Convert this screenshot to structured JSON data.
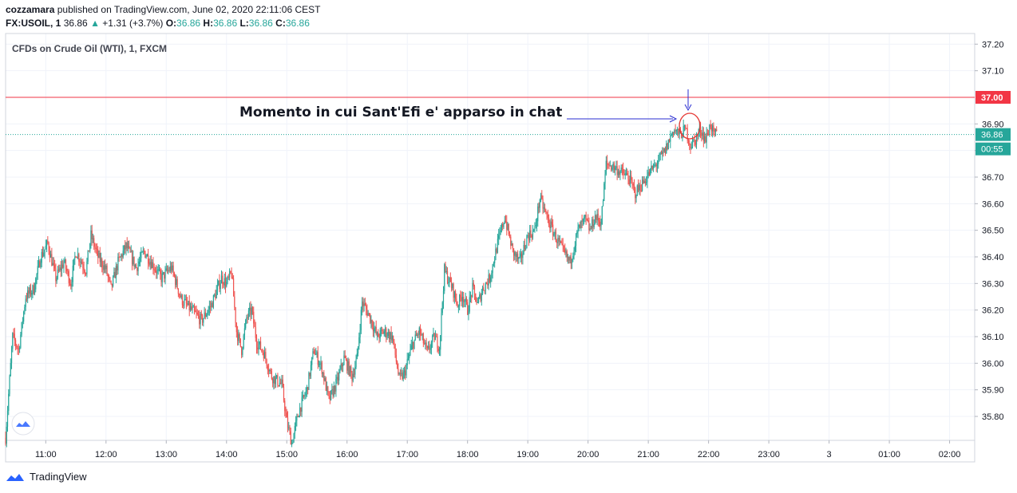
{
  "header": {
    "author": "cozzamara",
    "published_text": "published on TradingView.com, June 02, 2020 22:11:06 CEST",
    "symbol": "FX:USOIL, 1",
    "last_price": "36.86",
    "change_arrow": "▲",
    "change": "+1.31 (+3.7%)",
    "o_label": "O:",
    "o_value": "36.86",
    "h_label": "H:",
    "h_value": "36.86",
    "l_label": "L:",
    "l_value": "36.86",
    "c_label": "C:",
    "c_value": "36.86"
  },
  "footer": {
    "brand": "TradingView"
  },
  "chart_data": {
    "type": "candlestick",
    "title": "CFDs on Crude Oil (WTI), 1, FXCM",
    "annotation": "Momento in cui Sant'Efi e' apparso in chat",
    "y_ticks": [
      "37.20",
      "37.10",
      "36.90",
      "36.80",
      "36.70",
      "36.60",
      "36.50",
      "36.40",
      "36.30",
      "36.20",
      "36.10",
      "36.00",
      "35.90",
      "35.80"
    ],
    "x_ticks": [
      "11:00",
      "12:00",
      "13:00",
      "14:00",
      "15:00",
      "16:00",
      "17:00",
      "18:00",
      "19:00",
      "20:00",
      "21:00",
      "22:00",
      "23:00",
      "3",
      "01:00",
      "02:00"
    ],
    "ylim": [
      35.71,
      37.24
    ],
    "horizontal_line": {
      "value": 37.0,
      "label": "37.00",
      "color": "#f23645"
    },
    "last_price_line": {
      "value": 36.86,
      "label": "36.86",
      "countdown": "00:55",
      "color": "#26a69a"
    },
    "colors": {
      "up": "#26a69a",
      "down": "#ef5350",
      "annotation": "#2a2ed1",
      "circle": "#e53935"
    },
    "path_anchors_time_close": [
      [
        "10:20",
        35.72
      ],
      [
        "10:27",
        36.1
      ],
      [
        "10:33",
        36.05
      ],
      [
        "10:40",
        36.25
      ],
      [
        "10:48",
        36.28
      ],
      [
        "10:55",
        36.4
      ],
      [
        "11:02",
        36.45
      ],
      [
        "11:10",
        36.32
      ],
      [
        "11:18",
        36.38
      ],
      [
        "11:25",
        36.3
      ],
      [
        "11:30",
        36.42
      ],
      [
        "11:40",
        36.35
      ],
      [
        "11:45",
        36.48
      ],
      [
        "11:52",
        36.4
      ],
      [
        "12:00",
        36.35
      ],
      [
        "12:05",
        36.28
      ],
      [
        "12:12",
        36.38
      ],
      [
        "12:20",
        36.44
      ],
      [
        "12:30",
        36.36
      ],
      [
        "12:38",
        36.42
      ],
      [
        "12:45",
        36.38
      ],
      [
        "12:55",
        36.32
      ],
      [
        "13:05",
        36.36
      ],
      [
        "13:15",
        36.24
      ],
      [
        "13:25",
        36.2
      ],
      [
        "13:35",
        36.16
      ],
      [
        "13:45",
        36.22
      ],
      [
        "13:55",
        36.32
      ],
      [
        "14:00",
        36.3
      ],
      [
        "14:05",
        36.34
      ],
      [
        "14:10",
        36.12
      ],
      [
        "14:15",
        36.05
      ],
      [
        "14:20",
        36.17
      ],
      [
        "14:25",
        36.2
      ],
      [
        "14:30",
        36.08
      ],
      [
        "14:37",
        36.04
      ],
      [
        "14:45",
        35.95
      ],
      [
        "14:55",
        35.92
      ],
      [
        "15:00",
        35.78
      ],
      [
        "15:05",
        35.7
      ],
      [
        "15:12",
        35.82
      ],
      [
        "15:20",
        35.9
      ],
      [
        "15:27",
        36.05
      ],
      [
        "15:35",
        35.98
      ],
      [
        "15:42",
        35.86
      ],
      [
        "15:50",
        35.93
      ],
      [
        "15:57",
        36.02
      ],
      [
        "16:05",
        35.95
      ],
      [
        "16:10",
        36.02
      ],
      [
        "16:15",
        36.23
      ],
      [
        "16:22",
        36.18
      ],
      [
        "16:30",
        36.1
      ],
      [
        "16:37",
        36.12
      ],
      [
        "16:45",
        36.1
      ],
      [
        "16:52",
        35.94
      ],
      [
        "16:57",
        35.96
      ],
      [
        "17:05",
        36.07
      ],
      [
        "17:12",
        36.12
      ],
      [
        "17:20",
        36.04
      ],
      [
        "17:27",
        36.1
      ],
      [
        "17:32",
        36.06
      ],
      [
        "17:37",
        36.35
      ],
      [
        "17:45",
        36.28
      ],
      [
        "17:50",
        36.22
      ],
      [
        "17:55",
        36.26
      ],
      [
        "18:00",
        36.2
      ],
      [
        "18:05",
        36.28
      ],
      [
        "18:10",
        36.22
      ],
      [
        "18:15",
        36.28
      ],
      [
        "18:22",
        36.32
      ],
      [
        "18:30",
        36.45
      ],
      [
        "18:37",
        36.55
      ],
      [
        "18:45",
        36.42
      ],
      [
        "18:52",
        36.38
      ],
      [
        "19:00",
        36.48
      ],
      [
        "19:07",
        36.5
      ],
      [
        "19:12",
        36.62
      ],
      [
        "19:20",
        36.54
      ],
      [
        "19:27",
        36.48
      ],
      [
        "19:35",
        36.42
      ],
      [
        "19:42",
        36.38
      ],
      [
        "19:50",
        36.5
      ],
      [
        "19:57",
        36.54
      ],
      [
        "20:02",
        36.5
      ],
      [
        "20:07",
        36.55
      ],
      [
        "20:13",
        36.53
      ],
      [
        "20:18",
        36.75
      ],
      [
        "20:25",
        36.74
      ],
      [
        "20:32",
        36.72
      ],
      [
        "20:40",
        36.7
      ],
      [
        "20:47",
        36.64
      ],
      [
        "20:55",
        36.68
      ],
      [
        "21:02",
        36.72
      ],
      [
        "21:10",
        36.76
      ],
      [
        "21:17",
        36.8
      ],
      [
        "21:25",
        36.88
      ],
      [
        "21:32",
        36.86
      ],
      [
        "21:37",
        36.88
      ],
      [
        "21:42",
        36.82
      ],
      [
        "21:47",
        36.84
      ],
      [
        "21:52",
        36.88
      ],
      [
        "21:57",
        36.84
      ],
      [
        "22:02",
        36.9
      ],
      [
        "22:05",
        36.86
      ],
      [
        "22:08",
        36.86
      ]
    ]
  }
}
